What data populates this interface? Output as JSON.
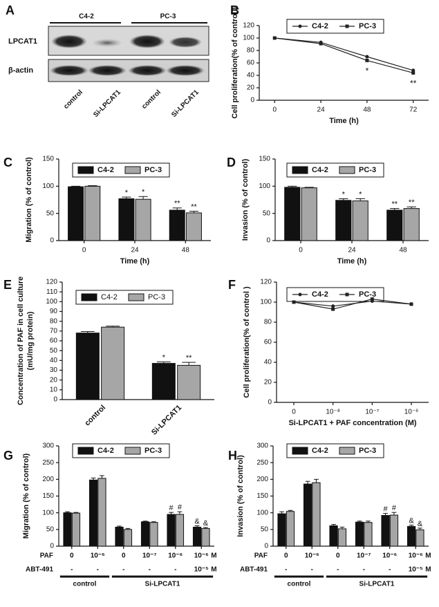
{
  "blot": {
    "label": "A",
    "groups": [
      "C4-2",
      "PC-3"
    ],
    "rows": [
      "LPCAT1",
      "β-actin"
    ],
    "lanes": [
      "control",
      "Si-LPCAT1",
      "control",
      "Si-LPCAT1"
    ]
  },
  "chart_data": [
    {
      "type": "line",
      "label": "B",
      "xlabel": "Time (h)",
      "ylabel": "Cell proliferation(% of control )",
      "x": [
        0,
        24,
        48,
        72
      ],
      "xlim": [
        -8,
        80
      ],
      "xticks": [
        0,
        24,
        48,
        72
      ],
      "ylim": [
        0,
        120
      ],
      "yticks": [
        0,
        20,
        40,
        60,
        80,
        100,
        120
      ],
      "series": [
        {
          "name": "C4-2",
          "color": "#222222",
          "marker": "circle",
          "values": [
            100,
            93,
            70,
            48
          ]
        },
        {
          "name": "PC-3",
          "color": "#222222",
          "marker": "square",
          "values": [
            100,
            91,
            64,
            44
          ]
        }
      ],
      "annotations": [
        null,
        null,
        "*",
        "**"
      ]
    },
    {
      "type": "bar",
      "label": "C",
      "xlabel": "Time (h)",
      "ylabel": "Migration (% of control)",
      "categories": [
        "0",
        "24",
        "48"
      ],
      "ylim": [
        0,
        150
      ],
      "yticks": [
        0,
        50,
        100,
        150
      ],
      "series": [
        {
          "name": "C4-2",
          "color": "#111111",
          "values": [
            99,
            77,
            56
          ],
          "errors": [
            1,
            3,
            4
          ],
          "annotations": [
            null,
            "*",
            "**"
          ]
        },
        {
          "name": "PC-3",
          "color": "#a6a6a6",
          "values": [
            100,
            76,
            51
          ],
          "errors": [
            1,
            5,
            3
          ],
          "annotations": [
            null,
            "*",
            "**"
          ]
        }
      ]
    },
    {
      "type": "bar",
      "label": "D",
      "xlabel": "Time (h)",
      "ylabel": "Invasion (% of control)",
      "categories": [
        "0",
        "24",
        "48"
      ],
      "ylim": [
        0,
        150
      ],
      "yticks": [
        0,
        50,
        100,
        150
      ],
      "series": [
        {
          "name": "C4-2",
          "color": "#111111",
          "values": [
            98,
            74,
            56
          ],
          "errors": [
            2,
            3,
            3
          ],
          "annotations": [
            null,
            "*",
            "**"
          ]
        },
        {
          "name": "PC-3",
          "color": "#a6a6a6",
          "values": [
            97,
            73,
            59
          ],
          "errors": [
            1,
            4,
            3
          ],
          "annotations": [
            null,
            "*",
            "**"
          ]
        }
      ]
    },
    {
      "type": "bar",
      "label": "E",
      "ylabel": [
        "Concentration of PAF in cell culture",
        "(mU/mg protein)"
      ],
      "categories": [
        "control",
        "Si-LPCAT1"
      ],
      "ylim": [
        0,
        120
      ],
      "yticks": [
        0,
        10,
        20,
        30,
        40,
        50,
        60,
        70,
        80,
        90,
        100,
        110,
        120
      ],
      "series": [
        {
          "name": "C4-2",
          "color": "#111111",
          "values": [
            68,
            37
          ],
          "errors": [
            1.5,
            1.5
          ],
          "annotations": [
            null,
            "*"
          ]
        },
        {
          "name": "PC-3",
          "color": "#a6a6a6",
          "values": [
            74,
            35
          ],
          "errors": [
            1,
            3
          ],
          "annotations": [
            null,
            "**"
          ]
        }
      ]
    },
    {
      "type": "line",
      "label": "F",
      "xlabel": "Si-LPCAT1 + PAF concentration (M)",
      "ylabel": "Cell proliferation(% of control )",
      "categories": [
        "0",
        "10⁻⁸",
        "10⁻⁷",
        "10⁻⁶"
      ],
      "ylim": [
        0,
        120
      ],
      "yticks": [
        0,
        20,
        40,
        60,
        80,
        100,
        120
      ],
      "series": [
        {
          "name": "C4-2",
          "color": "#222222",
          "marker": "circle",
          "values": [
            100,
            96,
            101,
            98
          ]
        },
        {
          "name": "PC-3",
          "color": "#222222",
          "marker": "square",
          "values": [
            100,
            93,
            103,
            98
          ]
        }
      ]
    },
    {
      "type": "bar",
      "label": "G",
      "ylabel": "Migration (% of control)",
      "categories": [
        "0",
        "10⁻⁶",
        "0",
        "10⁻⁷",
        "10⁻⁶",
        "10⁻⁶"
      ],
      "row_label": "PAF",
      "second_row_label": "ABT-491",
      "second_row": [
        "-",
        "-",
        "-",
        "-",
        "-",
        "10⁻⁵"
      ],
      "unit": "M",
      "groups": [
        "control",
        "Si-LPCAT1"
      ],
      "ylim": [
        0,
        300
      ],
      "yticks": [
        0,
        50,
        100,
        150,
        200,
        250,
        300
      ],
      "series": [
        {
          "name": "C4-2",
          "color": "#111111",
          "values": [
            100,
            198,
            57,
            73,
            95,
            57
          ],
          "errors": [
            3,
            6,
            3,
            2,
            6,
            4
          ],
          "annotations": [
            null,
            null,
            null,
            null,
            "#",
            "&"
          ]
        },
        {
          "name": "PC-3",
          "color": "#a6a6a6",
          "values": [
            99,
            203,
            50,
            71,
            95,
            53
          ],
          "errors": [
            2,
            8,
            3,
            2,
            8,
            3
          ],
          "annotations": [
            null,
            null,
            null,
            null,
            "#",
            "&"
          ]
        }
      ]
    },
    {
      "type": "bar",
      "label": "H",
      "ylabel": "Invasion (% of control)",
      "categories": [
        "0",
        "10⁻⁶",
        "0",
        "10⁻⁷",
        "10⁻⁶",
        "10⁻⁶"
      ],
      "row_label": "PAF",
      "second_row_label": "ABT-491",
      "second_row": [
        "-",
        "-",
        "-",
        "-",
        "-",
        "10⁻⁵"
      ],
      "unit": "M",
      "groups": [
        "control",
        "Si-LPCAT1"
      ],
      "ylim": [
        0,
        300
      ],
      "yticks": [
        0,
        50,
        100,
        150,
        200,
        250,
        300
      ],
      "series": [
        {
          "name": "C4-2",
          "color": "#111111",
          "values": [
            97,
            186,
            61,
            72,
            92,
            59
          ],
          "errors": [
            6,
            8,
            4,
            3,
            6,
            4
          ],
          "annotations": [
            null,
            null,
            null,
            null,
            "#",
            "&"
          ]
        },
        {
          "name": "PC-3",
          "color": "#a6a6a6",
          "values": [
            104,
            190,
            52,
            71,
            93,
            49
          ],
          "errors": [
            3,
            10,
            5,
            4,
            8,
            5
          ],
          "annotations": [
            null,
            null,
            null,
            null,
            "#",
            "&"
          ]
        }
      ]
    }
  ]
}
